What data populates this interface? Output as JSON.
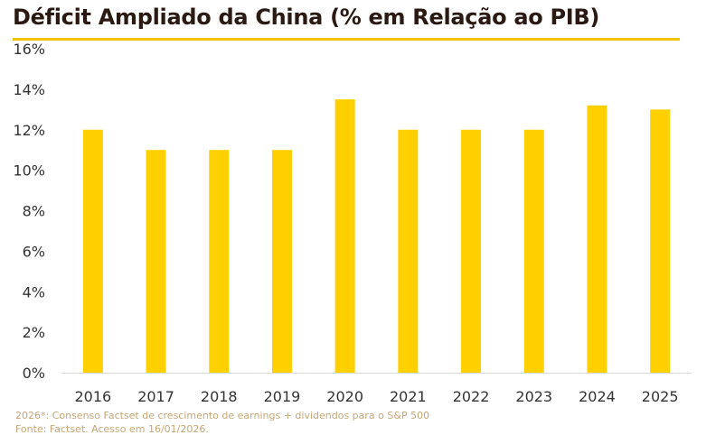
{
  "title": "Déficit Ampliado da China (% em Relação ao PIB)",
  "colors": {
    "bar": "#FFD000",
    "title_rule": "#F2C200",
    "title_text": "#2B1A14",
    "tick_text": "#333333",
    "footnote_text": "#C7A777"
  },
  "chart_data": {
    "type": "bar",
    "categories": [
      "2016",
      "2017",
      "2018",
      "2019",
      "2020",
      "2021",
      "2022",
      "2023",
      "2024",
      "2025"
    ],
    "series": [
      {
        "values": [
          12.0,
          11.0,
          11.0,
          11.0,
          13.5,
          12.0,
          12.0,
          12.0,
          13.2,
          13.0
        ]
      }
    ],
    "ylim": [
      0,
      16
    ],
    "yticks": [
      0,
      2,
      4,
      6,
      8,
      10,
      12,
      14,
      16
    ],
    "ytick_labels": [
      "0%",
      "2%",
      "4%",
      "6%",
      "8%",
      "10%",
      "12%",
      "14%",
      "16%"
    ],
    "grid": false,
    "legend": "none"
  },
  "footnotes": {
    "line1": "2026*: Consenso Factset de crescimento de earnings + dividendos para o S&P 500",
    "line2": "Fonte: Factset. Acesso em 16/01/2026."
  }
}
